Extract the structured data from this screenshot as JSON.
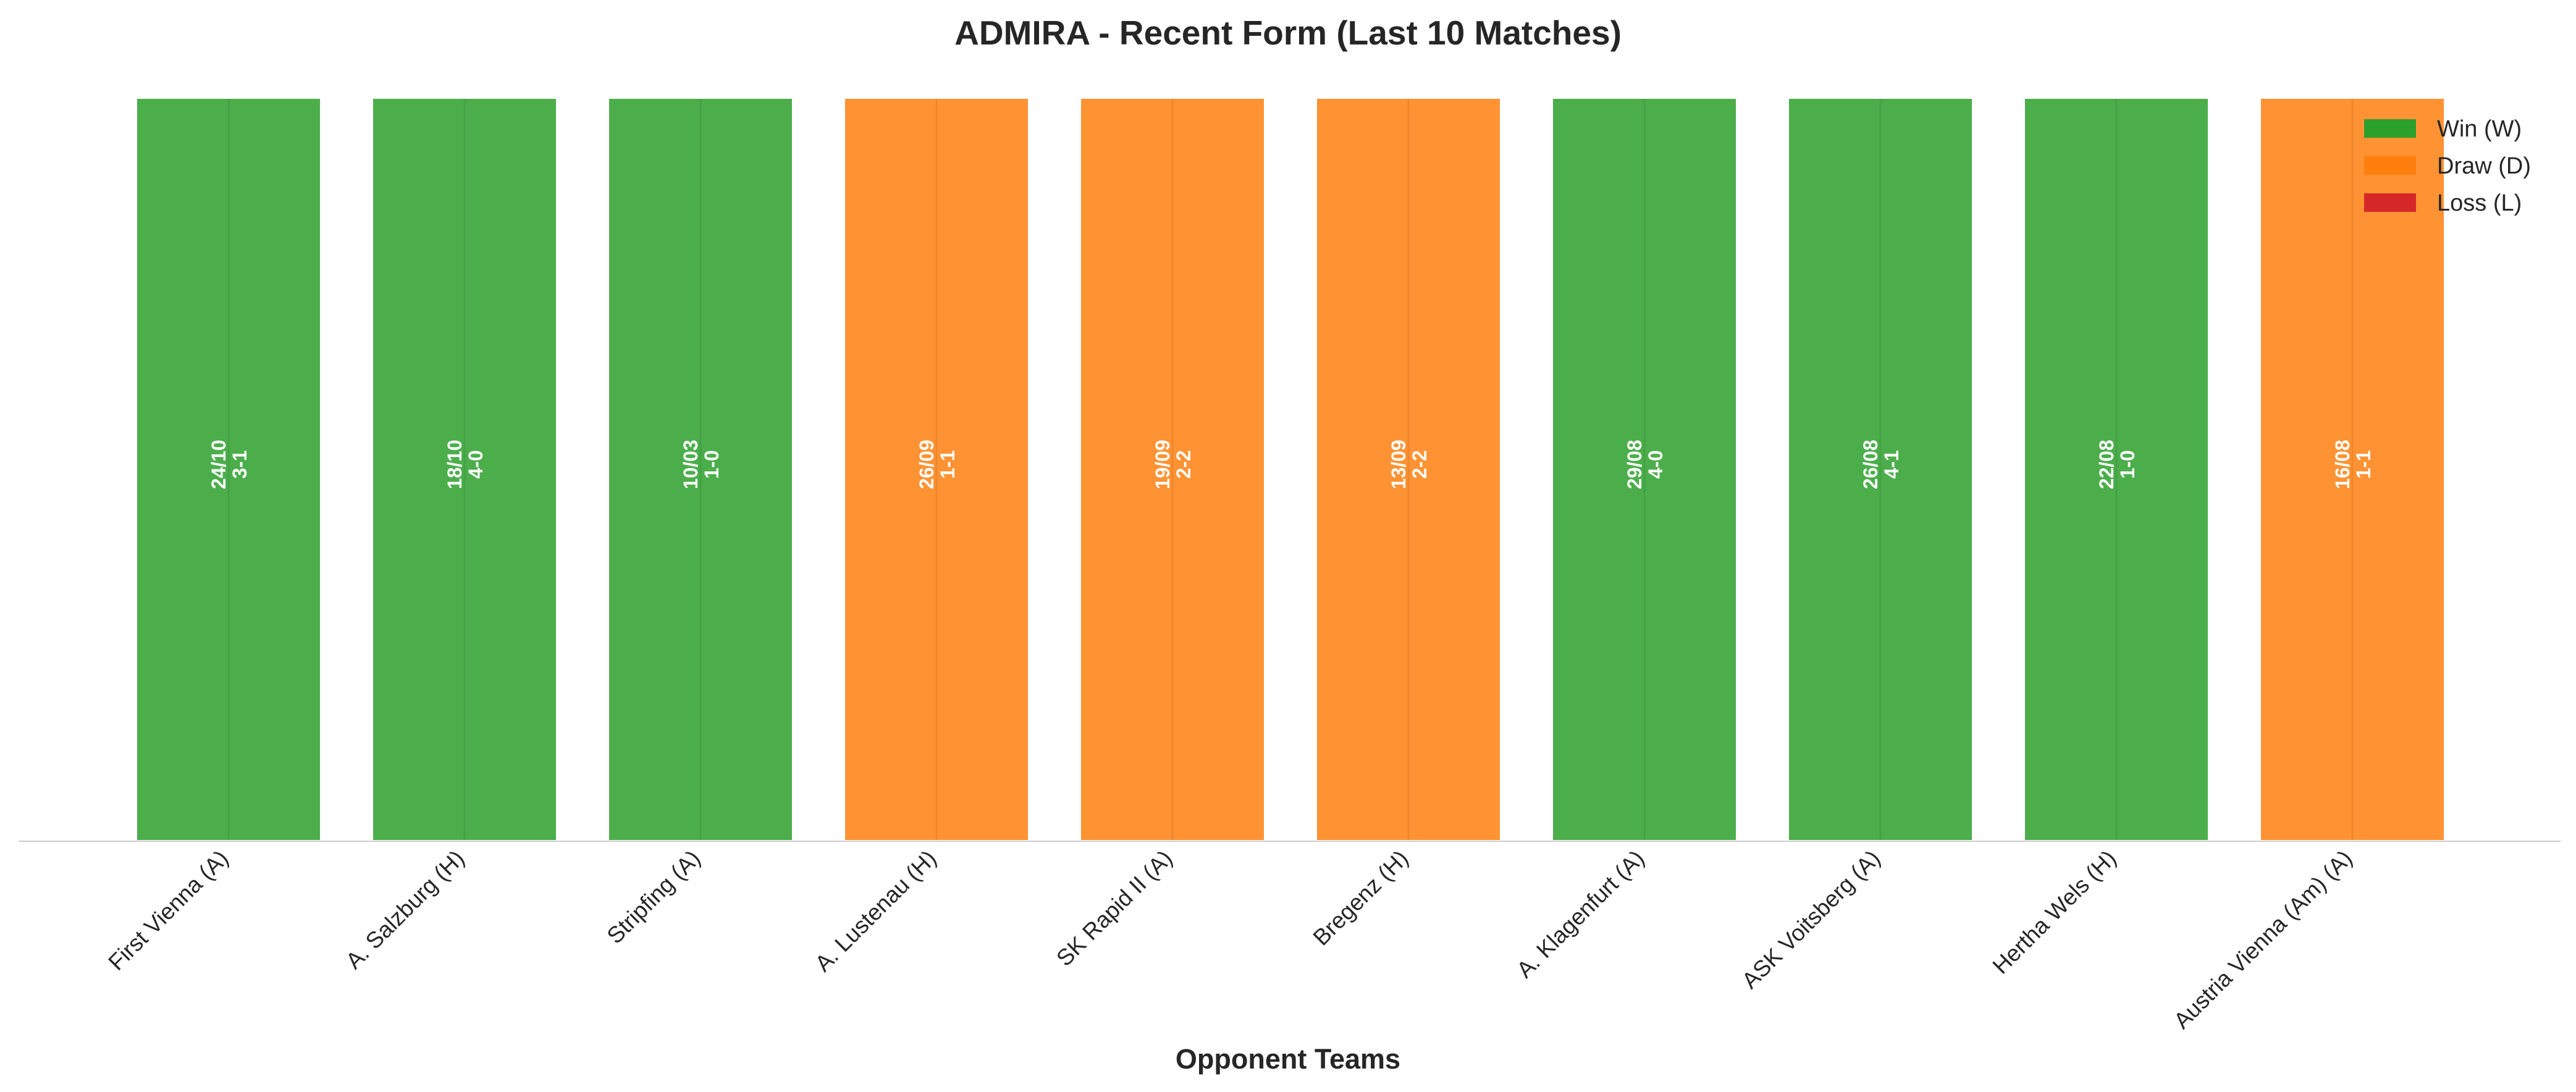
{
  "chart_data": {
    "type": "bar",
    "title": "ADMIRA - Recent Form (Last 10 Matches)",
    "xlabel": "Opponent Teams",
    "ylabel": "",
    "grid": false,
    "legend_position": "top-right",
    "ylim": [
      0,
      1
    ],
    "categories": [
      "First Vienna (A)",
      "A. Salzburg (H)",
      "Stripfing (A)",
      "A. Lustenau (H)",
      "SK Rapid II (A)",
      "Bregenz (H)",
      "A. Klagenfurt (A)",
      "ASK Voitsberg (A)",
      "Hertha Wels (H)",
      "Austria Vienna (Am) (A)"
    ],
    "values": [
      1,
      1,
      1,
      1,
      1,
      1,
      1,
      1,
      1,
      1
    ],
    "results": [
      "W",
      "W",
      "W",
      "D",
      "D",
      "D",
      "W",
      "W",
      "W",
      "D"
    ],
    "dates": [
      "24/10",
      "18/10",
      "10/03",
      "26/09",
      "19/09",
      "13/09",
      "29/08",
      "26/08",
      "22/08",
      "16/08"
    ],
    "scores": [
      "3-1",
      "4-0",
      "1-0",
      "1-1",
      "2-2",
      "2-2",
      "4-0",
      "4-1",
      "1-0",
      "1-1"
    ],
    "colors": {
      "W": "#2ca02c",
      "D": "#ff7f0e",
      "L": "#d62728"
    },
    "legend": [
      {
        "key": "W",
        "label": "Win (W)"
      },
      {
        "key": "D",
        "label": "Draw (D)"
      },
      {
        "key": "L",
        "label": "Loss (L)"
      }
    ]
  }
}
